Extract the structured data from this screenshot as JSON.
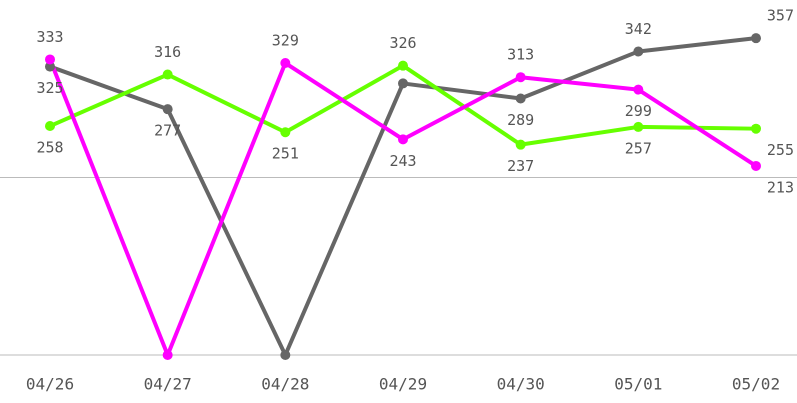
{
  "chart_data": {
    "type": "line",
    "categories": [
      "04/26",
      "04/27",
      "04/28",
      "04/29",
      "04/30",
      "05/01",
      "05/02"
    ],
    "series": [
      {
        "name": "Gray",
        "color": "#666666",
        "values": [
          325,
          277,
          0,
          306,
          289,
          342,
          357
        ],
        "value_labels": [
          "325",
          "277",
          null,
          null,
          "289",
          "342",
          "357"
        ]
      },
      {
        "name": "Green",
        "color": "#66ff00",
        "values": [
          258,
          316,
          251,
          326,
          237,
          257,
          255
        ],
        "value_labels": [
          "258",
          "316",
          "251",
          "326",
          "237",
          "257",
          "255"
        ]
      },
      {
        "name": "Magenta",
        "color": "#ff00ff",
        "values": [
          333,
          0,
          329,
          243,
          313,
          299,
          213
        ],
        "value_labels": [
          "333",
          null,
          "329",
          "243",
          "313",
          "299",
          "213"
        ]
      }
    ],
    "ylim": [
      0,
      400
    ],
    "yticks": [
      0,
      200
    ],
    "grid": true
  }
}
